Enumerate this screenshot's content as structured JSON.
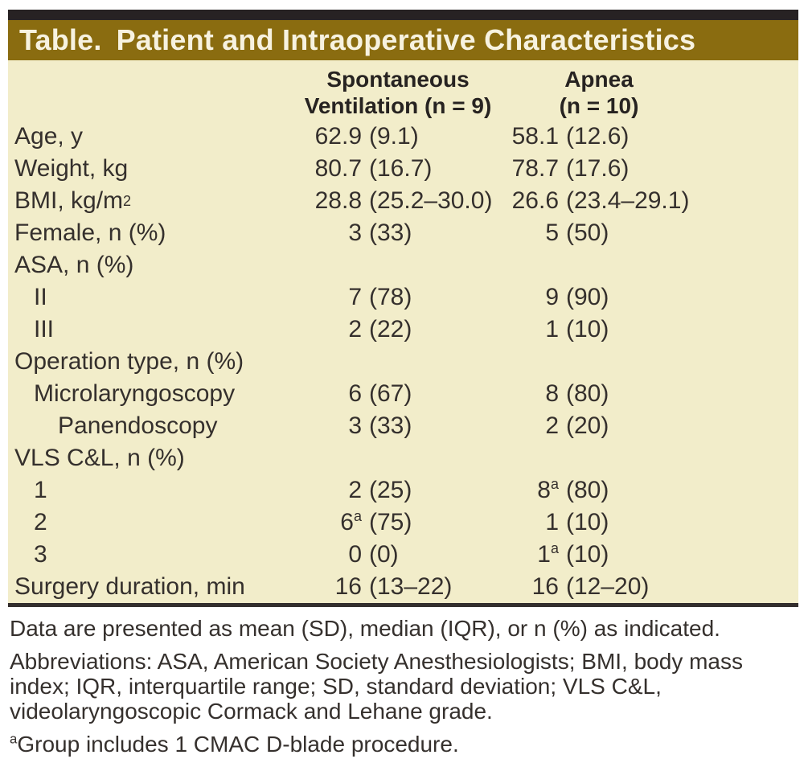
{
  "title": {
    "prefix": "Table.",
    "text": "Patient and Intraoperative Characteristics"
  },
  "columns": {
    "sv": {
      "line1": "Spontaneous",
      "line2": "Ventilation (n = 9)"
    },
    "apnea": {
      "line1": "Apnea",
      "line2": "(n = 10)"
    }
  },
  "rows": [
    {
      "label": "Age, y",
      "labelSup": "",
      "indent": 0,
      "sv": {
        "num": "62.9",
        "sup": "",
        "rest": "(9.1)"
      },
      "ap": {
        "num": "58.1",
        "sup": "",
        "rest": "(12.6)"
      }
    },
    {
      "label": "Weight, kg",
      "labelSup": "",
      "indent": 0,
      "sv": {
        "num": "80.7",
        "sup": "",
        "rest": "(16.7)"
      },
      "ap": {
        "num": "78.7",
        "sup": "",
        "rest": "(17.6)"
      }
    },
    {
      "label": "BMI, kg/m",
      "labelSup": "2",
      "indent": 0,
      "sv": {
        "num": "28.8",
        "sup": "",
        "rest": "(25.2–30.0)"
      },
      "ap": {
        "num": "26.6",
        "sup": "",
        "rest": "(23.4–29.1)"
      }
    },
    {
      "label": "Female, n (%)",
      "labelSup": "",
      "indent": 0,
      "sv": {
        "num": "3",
        "sup": "",
        "rest": "(33)"
      },
      "ap": {
        "num": "5",
        "sup": "",
        "rest": "(50)"
      }
    },
    {
      "label": "ASA, n (%)",
      "labelSup": "",
      "indent": 0,
      "sv": {
        "num": "",
        "sup": "",
        "rest": ""
      },
      "ap": {
        "num": "",
        "sup": "",
        "rest": ""
      }
    },
    {
      "label": "II",
      "labelSup": "",
      "indent": 1,
      "sv": {
        "num": "7",
        "sup": "",
        "rest": "(78)"
      },
      "ap": {
        "num": "9",
        "sup": "",
        "rest": "(90)"
      }
    },
    {
      "label": "III",
      "labelSup": "",
      "indent": 1,
      "sv": {
        "num": "2",
        "sup": "",
        "rest": "(22)"
      },
      "ap": {
        "num": "1",
        "sup": "",
        "rest": "(10)"
      }
    },
    {
      "label": "Operation type, n (%)",
      "labelSup": "",
      "indent": 0,
      "sv": {
        "num": "",
        "sup": "",
        "rest": ""
      },
      "ap": {
        "num": "",
        "sup": "",
        "rest": ""
      }
    },
    {
      "label": "Microlaryngoscopy",
      "labelSup": "",
      "indent": 1,
      "sv": {
        "num": "6",
        "sup": "",
        "rest": "(67)"
      },
      "ap": {
        "num": "8",
        "sup": "",
        "rest": "(80)"
      }
    },
    {
      "label": "Panendoscopy",
      "labelSup": "",
      "indent": 2,
      "sv": {
        "num": "3",
        "sup": "",
        "rest": "(33)"
      },
      "ap": {
        "num": "2",
        "sup": "",
        "rest": "(20)"
      }
    },
    {
      "label": "VLS C&L, n (%)",
      "labelSup": "",
      "indent": 0,
      "sv": {
        "num": "",
        "sup": "",
        "rest": ""
      },
      "ap": {
        "num": "",
        "sup": "",
        "rest": ""
      }
    },
    {
      "label": "1",
      "labelSup": "",
      "indent": 1,
      "sv": {
        "num": "2",
        "sup": "",
        "rest": "(25)"
      },
      "ap": {
        "num": "8",
        "sup": "a",
        "rest": "(80)"
      }
    },
    {
      "label": "2",
      "labelSup": "",
      "indent": 1,
      "sv": {
        "num": "6",
        "sup": "a",
        "rest": "(75)"
      },
      "ap": {
        "num": "1",
        "sup": "",
        "rest": "(10)"
      }
    },
    {
      "label": "3",
      "labelSup": "",
      "indent": 1,
      "sv": {
        "num": "0",
        "sup": "",
        "rest": "(0)"
      },
      "ap": {
        "num": "1",
        "sup": "a",
        "rest": "(10)"
      }
    },
    {
      "label": "Surgery duration, min",
      "labelSup": "",
      "indent": 0,
      "sv": {
        "num": "16",
        "sup": "",
        "rest": "(13–22)"
      },
      "ap": {
        "num": "16",
        "sup": "",
        "rest": "(12–20)"
      }
    }
  ],
  "footnotes": {
    "presented": "Data are presented as mean (SD), median (IQR), or n (%) as indicated.",
    "abbreviations": "Abbreviations: ASA, American Society Anesthesiologists; BMI, body mass index; IQR, interquartile range; SD, standard deviation; VLS C&L, videolaryngoscopic Cormack and Lehane grade.",
    "note_sup": "a",
    "note_text": "Group includes 1 CMAC D-blade procedure."
  },
  "colors": {
    "title_bar_bg": "#8a6c10",
    "title_text": "#f7f2e0",
    "body_bg": "#f2edca",
    "top_bar": "#272223",
    "text": "#35302d",
    "footnote_bg": "#ffffff"
  }
}
